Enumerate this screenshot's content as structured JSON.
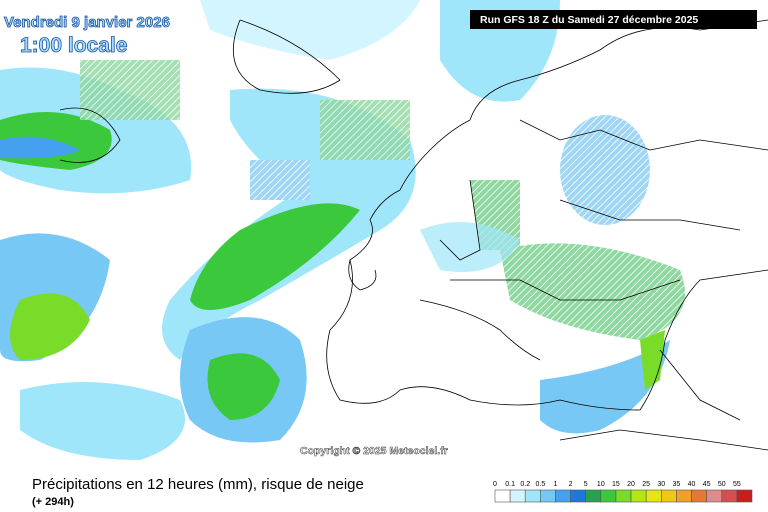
{
  "header": {
    "date": "Vendredi 9 janvier 2026",
    "time": "1:00 locale",
    "run": "Run GFS 18 Z du Samedi 27 décembre 2025"
  },
  "copyright": "Copyright © 2025 Meteociel.fr",
  "footer": {
    "title": "Précipitations en 12 heures (mm), risque de neige",
    "lead": "(+ 294h)"
  },
  "legend": {
    "labels": [
      0,
      0.1,
      0.2,
      0.5,
      1,
      2,
      5,
      10,
      15,
      20,
      25,
      30,
      35,
      40,
      45,
      50,
      55
    ],
    "colors": [
      "#ffffff",
      "#d2f5ff",
      "#a0e6fa",
      "#78c8f5",
      "#46a0f0",
      "#1e78dc",
      "#28a050",
      "#3cc83c",
      "#78dc28",
      "#b4e614",
      "#e6e614",
      "#f0c814",
      "#f0a028",
      "#e67832",
      "#dc8c8c",
      "#d25050",
      "#c81e1e"
    ]
  }
}
